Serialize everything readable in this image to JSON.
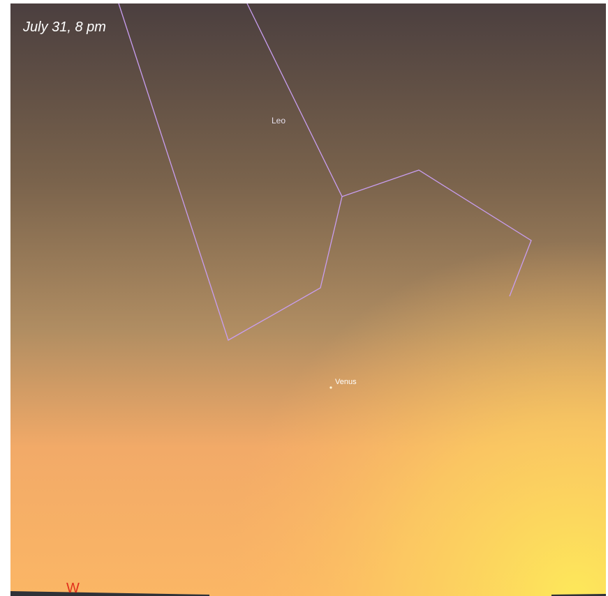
{
  "caption": "July 31, 8 pm",
  "constellation": {
    "label": "Leo"
  },
  "planet": {
    "label": "Venus"
  },
  "compass": {
    "label": "W"
  }
}
